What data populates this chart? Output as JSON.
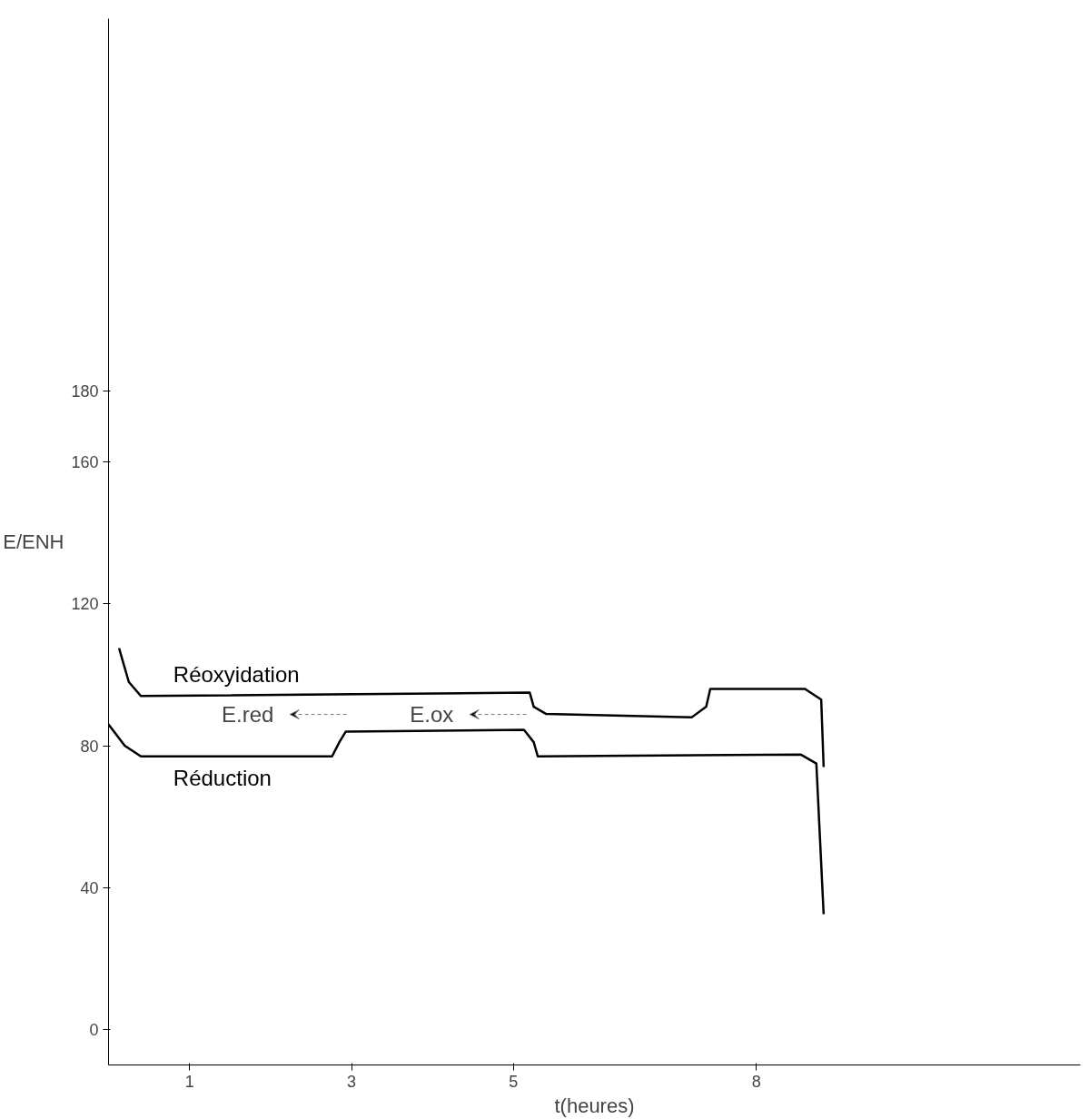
{
  "chart_data": {
    "type": "line",
    "xlabel": "t(heures)",
    "ylabel": "E/ENH",
    "xlim": [
      0,
      12
    ],
    "ylim": [
      -10,
      285
    ],
    "xticks": [
      1,
      3,
      5,
      8
    ],
    "yticks": [
      0,
      40,
      80,
      120,
      160,
      180
    ],
    "grid": false,
    "marker": "none",
    "line_style": "solid",
    "series": [
      {
        "name": "Réoxyidation",
        "color": "#000000",
        "x": [
          0.13,
          0.25,
          0.4,
          5.2,
          5.25,
          5.4,
          7.2,
          7.38,
          7.43,
          8.6,
          8.8,
          8.83
        ],
        "values": [
          107.5,
          98,
          94,
          95,
          91,
          89,
          88,
          91,
          96,
          96,
          93,
          74
        ]
      },
      {
        "name": "Réduction",
        "color": "#000000",
        "x": [
          0.0,
          0.2,
          0.4,
          2.76,
          2.85,
          2.93,
          5.13,
          5.25,
          5.3,
          8.55,
          8.74,
          8.83
        ],
        "values": [
          86,
          80,
          77,
          77,
          81,
          84,
          84.5,
          81,
          77,
          77.5,
          75,
          32.5
        ]
      }
    ],
    "annotations": [
      "E.red",
      "E.ox"
    ]
  }
}
